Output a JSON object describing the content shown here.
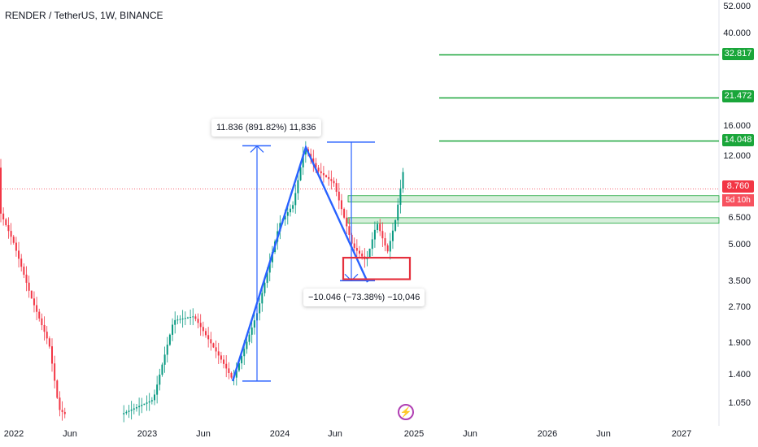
{
  "chart_data": {
    "type": "candlestick",
    "title": "RENDER / TetherUS, 1W, BINANCE",
    "y_scale": "log",
    "ylim": [
      0.95,
      52.0
    ],
    "y_ticks": [
      "52.000",
      "40.000",
      "16.000",
      "12.000",
      "6.500",
      "5.000",
      "3.500",
      "2.700",
      "1.900",
      "1.400",
      "1.050"
    ],
    "x_ticks": [
      "2022",
      "Jun",
      "2023",
      "Jun",
      "2024",
      "Jun",
      "2025",
      "Jun",
      "2026",
      "Jun",
      "2027"
    ],
    "last_price": "8.760",
    "countdown": "5d 10h",
    "resistance_levels": [
      {
        "value": 32.817,
        "label": "32.817",
        "color": "#1aa63a"
      },
      {
        "value": 21.472,
        "label": "21.472",
        "color": "#1aa63a"
      },
      {
        "value": 14.048,
        "label": "14.048",
        "color": "#1aa63a"
      }
    ],
    "zones": [
      {
        "low": 7.7,
        "high": 8.2
      },
      {
        "low": 6.25,
        "high": 6.6
      }
    ],
    "price_swings": [
      {
        "from": 1.32,
        "to": 13.2
      },
      {
        "from": 13.2,
        "to": 3.5
      }
    ],
    "measurements": [
      {
        "label": "11.836 (891.82%) 11,836"
      },
      {
        "label": "−10.046 (−73.38%) −10,046"
      }
    ],
    "colors": {
      "up": "#089981",
      "down": "#f23645",
      "drawing": "#2962ff",
      "level": "#1aa63a",
      "box": "#e5303d"
    }
  }
}
